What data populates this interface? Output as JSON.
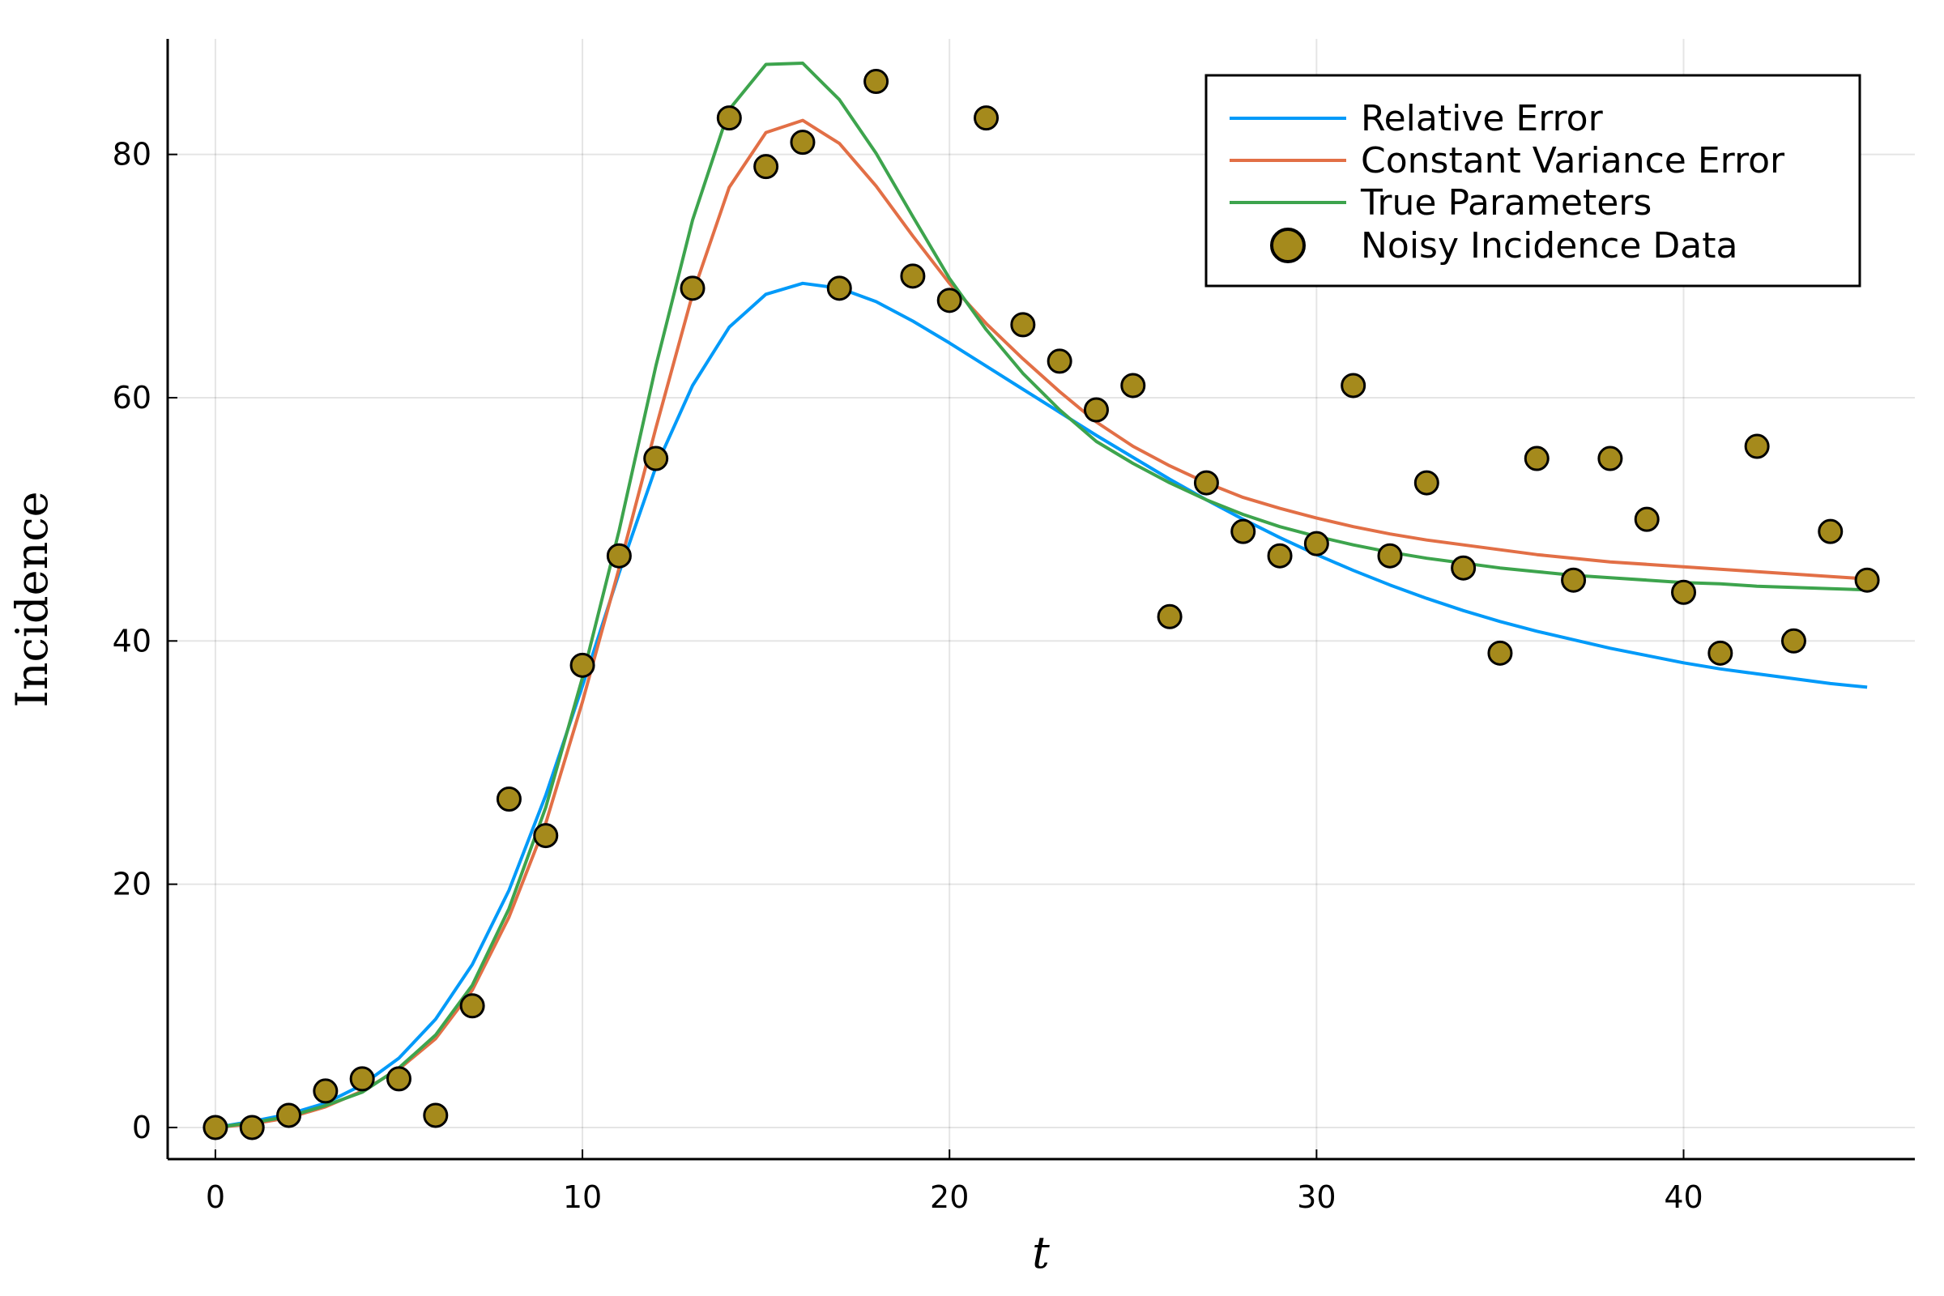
{
  "chart_data": {
    "type": "line",
    "xlabel": "t",
    "ylabel": "Incidence",
    "xlim": [
      -1.3,
      46.3
    ],
    "ylim": [
      -2.6,
      89.5
    ],
    "xticks": [
      0,
      10,
      20,
      30,
      40
    ],
    "yticks": [
      0,
      20,
      40,
      60,
      80
    ],
    "grid": true,
    "legend_position": "top-right",
    "series": [
      {
        "name": "Relative Error",
        "kind": "line",
        "color": "#009af9",
        "x": [
          0,
          1,
          2,
          3,
          4,
          5,
          6,
          7,
          8,
          9,
          10,
          11,
          12,
          13,
          14,
          15,
          16,
          17,
          18,
          19,
          20,
          21,
          22,
          23,
          24,
          25,
          26,
          27,
          28,
          29,
          30,
          31,
          32,
          33,
          34,
          35,
          36,
          37,
          38,
          39,
          40,
          41,
          42,
          43,
          44,
          45
        ],
        "values": [
          0.0,
          0.5,
          1.1,
          2.0,
          3.5,
          5.7,
          8.9,
          13.4,
          19.5,
          27.3,
          36.3,
          45.6,
          54.3,
          61.0,
          65.8,
          68.5,
          69.4,
          69.0,
          67.9,
          66.3,
          64.5,
          62.6,
          60.7,
          58.8,
          56.9,
          55.1,
          53.3,
          51.6,
          50.0,
          48.5,
          47.1,
          45.8,
          44.6,
          43.5,
          42.5,
          41.6,
          40.8,
          40.1,
          39.4,
          38.8,
          38.2,
          37.7,
          37.3,
          36.9,
          36.5,
          36.2
        ]
      },
      {
        "name": "Constant Variance Error",
        "kind": "line",
        "color": "#e26f46",
        "x": [
          0,
          1,
          2,
          3,
          4,
          5,
          6,
          7,
          8,
          9,
          10,
          11,
          12,
          13,
          14,
          15,
          16,
          17,
          18,
          19,
          20,
          21,
          22,
          23,
          24,
          25,
          26,
          27,
          28,
          29,
          30,
          31,
          32,
          33,
          34,
          35,
          36,
          37,
          38,
          39,
          40,
          41,
          42,
          43,
          44,
          45
        ],
        "values": [
          0.0,
          0.3,
          0.8,
          1.7,
          3.0,
          4.8,
          7.3,
          11.3,
          17.3,
          25.0,
          35.0,
          46.0,
          57.5,
          68.5,
          77.3,
          81.8,
          82.8,
          80.9,
          77.4,
          73.3,
          69.4,
          66.1,
          63.2,
          60.5,
          58.0,
          56.0,
          54.4,
          53.0,
          51.8,
          50.9,
          50.1,
          49.4,
          48.8,
          48.3,
          47.9,
          47.5,
          47.1,
          46.8,
          46.5,
          46.3,
          46.1,
          45.9,
          45.7,
          45.5,
          45.3,
          45.1
        ]
      },
      {
        "name": "True Parameters",
        "kind": "line",
        "color": "#3da44d",
        "x": [
          0,
          1,
          2,
          3,
          4,
          5,
          6,
          7,
          8,
          9,
          10,
          11,
          12,
          13,
          14,
          15,
          16,
          17,
          18,
          19,
          20,
          21,
          22,
          23,
          24,
          25,
          26,
          27,
          28,
          29,
          30,
          31,
          32,
          33,
          34,
          35,
          36,
          37,
          38,
          39,
          40,
          41,
          42,
          43,
          44,
          45
        ],
        "values": [
          0.0,
          0.4,
          0.9,
          1.8,
          2.9,
          4.9,
          7.6,
          11.7,
          18.0,
          26.3,
          37.0,
          49.1,
          62.6,
          74.6,
          83.7,
          87.4,
          87.5,
          84.5,
          80.1,
          74.9,
          69.8,
          65.6,
          62.0,
          59.0,
          56.4,
          54.6,
          53.0,
          51.6,
          50.4,
          49.4,
          48.6,
          47.9,
          47.3,
          46.8,
          46.4,
          46.0,
          45.7,
          45.4,
          45.2,
          45.0,
          44.8,
          44.7,
          44.5,
          44.4,
          44.3,
          44.2
        ]
      },
      {
        "name": "Noisy Incidence Data",
        "kind": "scatter",
        "color": "#a58a1c",
        "x": [
          0,
          1,
          2,
          3,
          4,
          5,
          6,
          7,
          8,
          9,
          10,
          11,
          12,
          13,
          14,
          15,
          16,
          17,
          18,
          19,
          20,
          21,
          22,
          23,
          24,
          25,
          26,
          27,
          28,
          29,
          30,
          31,
          32,
          33,
          34,
          35,
          36,
          37,
          38,
          39,
          40,
          41,
          42,
          43,
          44,
          45
        ],
        "values": [
          0,
          0,
          1,
          3,
          4,
          4,
          1,
          10,
          27,
          24,
          38,
          47,
          55,
          69,
          83,
          79,
          81,
          69,
          86,
          70,
          68,
          83,
          66,
          63,
          59,
          61,
          42,
          53,
          49,
          47,
          48,
          61,
          47,
          53,
          46,
          39,
          55,
          45,
          55,
          50,
          44,
          39,
          56,
          40,
          49,
          45
        ]
      }
    ]
  }
}
